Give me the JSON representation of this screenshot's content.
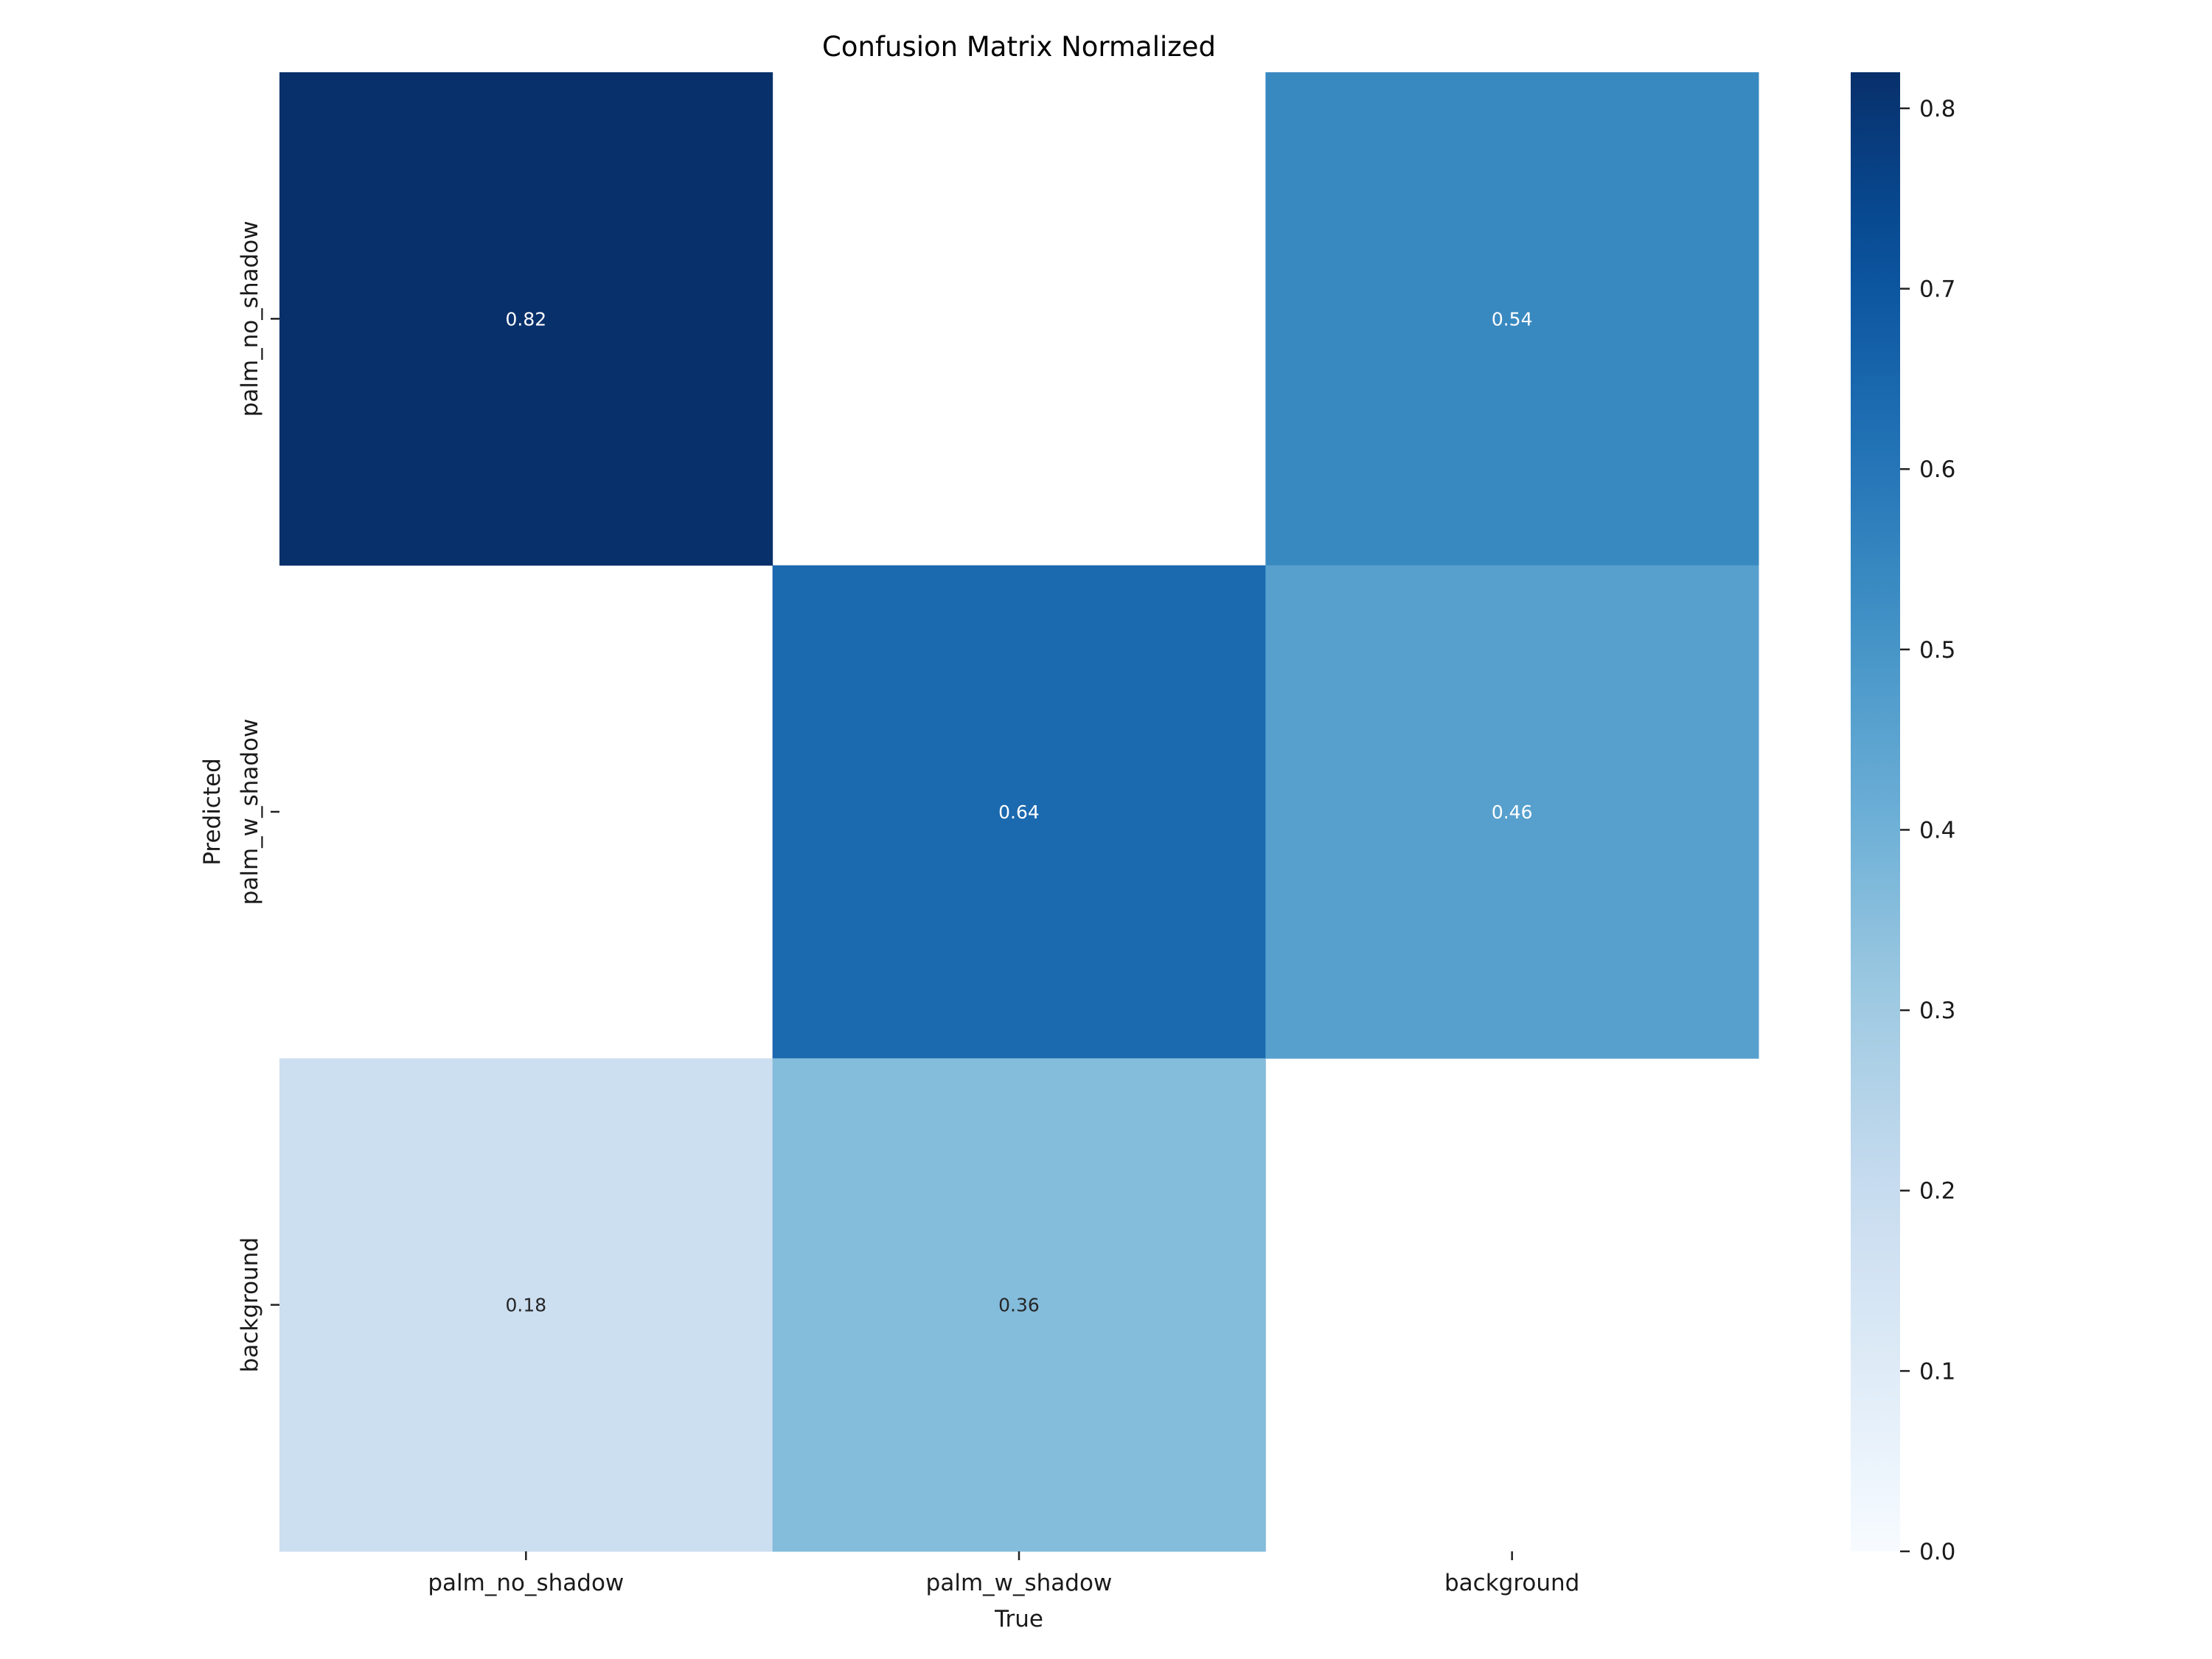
{
  "chart_data": {
    "type": "heatmap",
    "title": "Confusion Matrix Normalized",
    "xlabel": "True",
    "ylabel": "Predicted",
    "x_categories": [
      "palm_no_shadow",
      "palm_w_shadow",
      "background"
    ],
    "y_categories": [
      "palm_no_shadow",
      "palm_w_shadow",
      "background"
    ],
    "values": [
      [
        0.82,
        null,
        0.54
      ],
      [
        null,
        0.64,
        0.46
      ],
      [
        0.18,
        0.36,
        null
      ]
    ],
    "colormap": "Blues",
    "colorbar": {
      "range": [
        0,
        0.82
      ],
      "ticks": [
        "0.0",
        "0.1",
        "0.2",
        "0.3",
        "0.4",
        "0.5",
        "0.6",
        "0.7",
        "0.8"
      ]
    },
    "grid": false
  }
}
